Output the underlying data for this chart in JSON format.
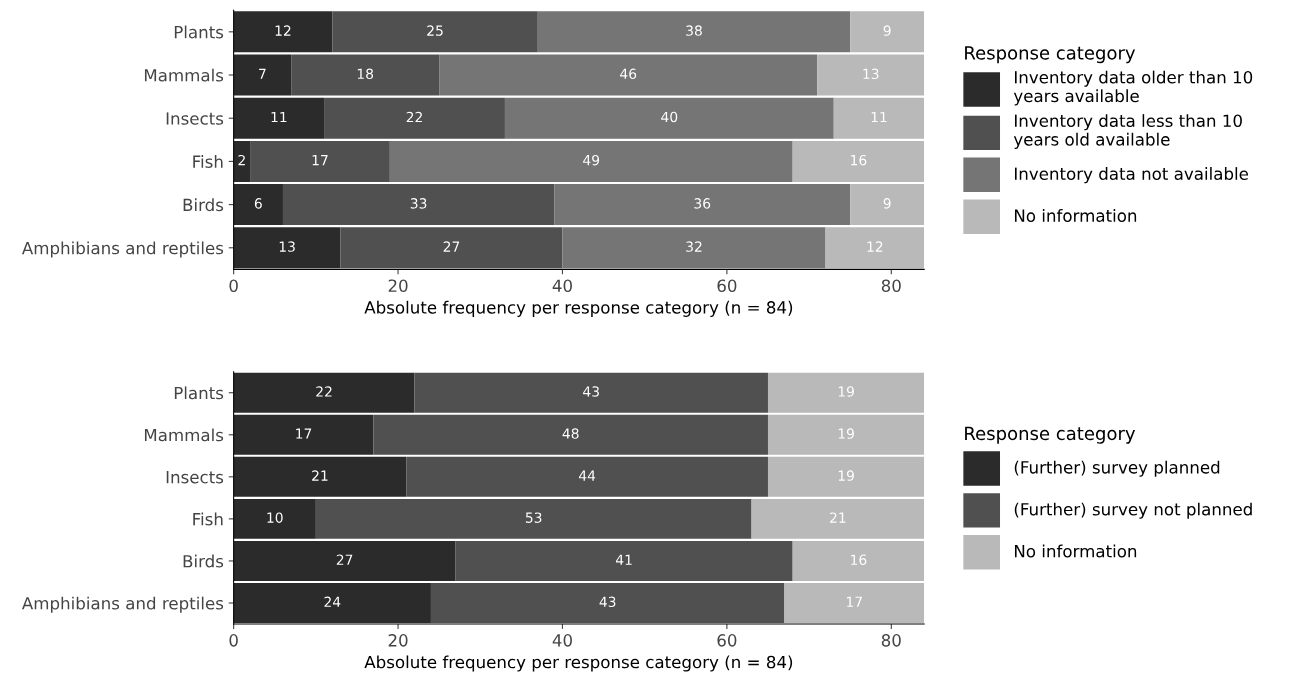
{
  "chart_data": [
    {
      "type": "bar",
      "orientation": "horizontal",
      "stacked": true,
      "data_labels": true,
      "grid": false,
      "legend": "right",
      "legend_title": "Response category",
      "xlabel": "Absolute frequency per response category (n = 84)",
      "xlim": [
        0,
        84
      ],
      "xticks": [
        0,
        20,
        40,
        60,
        80
      ],
      "categories": [
        "Plants",
        "Mammals",
        "Insects",
        "Fish",
        "Birds",
        "Amphibians and reptiles"
      ],
      "series": [
        {
          "name": "Inventory data older than 10 years available",
          "color": "#2b2b2b",
          "values": [
            12,
            7,
            11,
            2,
            6,
            13
          ]
        },
        {
          "name": "Inventory data less than 10 years old available",
          "color": "#505050",
          "values": [
            25,
            18,
            22,
            17,
            33,
            27
          ]
        },
        {
          "name": "Inventory data not available",
          "color": "#757575",
          "values": [
            38,
            46,
            40,
            49,
            36,
            32
          ]
        },
        {
          "name": "No information",
          "color": "#b9b9b9",
          "values": [
            9,
            13,
            11,
            16,
            9,
            12
          ]
        }
      ]
    },
    {
      "type": "bar",
      "orientation": "horizontal",
      "stacked": true,
      "data_labels": true,
      "grid": false,
      "legend": "right",
      "legend_title": "Response category",
      "xlabel": "Absolute frequency per response category (n = 84)",
      "xlim": [
        0,
        84
      ],
      "xticks": [
        0,
        20,
        40,
        60,
        80
      ],
      "categories": [
        "Plants",
        "Mammals",
        "Insects",
        "Fish",
        "Birds",
        "Amphibians and reptiles"
      ],
      "series": [
        {
          "name": "(Further) survey planned",
          "color": "#2b2b2b",
          "values": [
            22,
            17,
            21,
            10,
            27,
            24
          ]
        },
        {
          "name": "(Further) survey not planned",
          "color": "#505050",
          "values": [
            43,
            48,
            44,
            53,
            41,
            43
          ]
        },
        {
          "name": "No information",
          "color": "#b9b9b9",
          "values": [
            19,
            19,
            19,
            21,
            16,
            17
          ]
        }
      ]
    }
  ]
}
